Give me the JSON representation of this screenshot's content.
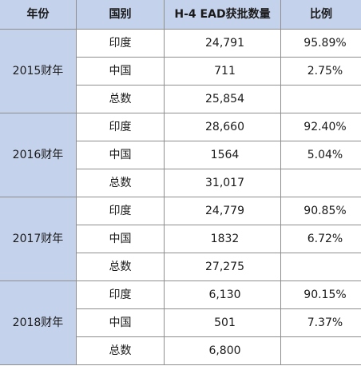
{
  "table": {
    "headers": [
      "年份",
      "国别",
      "H-4 EAD获批数量",
      "比例"
    ],
    "groups": [
      {
        "year": "2015财年",
        "rows": [
          {
            "country": "印度",
            "count": "24,791",
            "ratio": "95.89%"
          },
          {
            "country": "中国",
            "count": "711",
            "ratio": "2.75%"
          },
          {
            "country": "总数",
            "count": "25,854",
            "ratio": ""
          }
        ]
      },
      {
        "year": "2016财年",
        "rows": [
          {
            "country": "印度",
            "count": "28,660",
            "ratio": "92.40%"
          },
          {
            "country": "中国",
            "count": "1564",
            "ratio": "5.04%"
          },
          {
            "country": "总数",
            "count": "31,017",
            "ratio": ""
          }
        ]
      },
      {
        "year": "2017财年",
        "rows": [
          {
            "country": "印度",
            "count": "24,779",
            "ratio": "90.85%"
          },
          {
            "country": "中国",
            "count": "1832",
            "ratio": "6.72%"
          },
          {
            "country": "总数",
            "count": "27,275",
            "ratio": ""
          }
        ]
      },
      {
        "year": "2018财年",
        "rows": [
          {
            "country": "印度",
            "count": "6,130",
            "ratio": "90.15%"
          },
          {
            "country": "中国",
            "count": "501",
            "ratio": "7.37%"
          },
          {
            "country": "总数",
            "count": "6,800",
            "ratio": ""
          }
        ]
      }
    ]
  },
  "colors": {
    "header_bg": "#c4d2ec",
    "year_bg": "#c4d2ec",
    "grid_line": "#8e8e8e"
  }
}
